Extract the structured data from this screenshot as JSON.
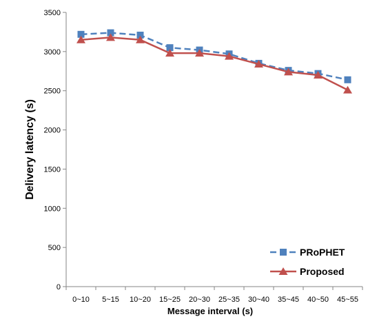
{
  "chart_data": {
    "type": "line",
    "title": "",
    "xlabel": "Message interval (s)",
    "ylabel": "Delivery latency (s)",
    "categories": [
      "0~10",
      "5~15",
      "10~20",
      "15~25",
      "20~30",
      "25~35",
      "30~40",
      "35~45",
      "40~50",
      "45~55"
    ],
    "ylim": [
      0,
      3500
    ],
    "yticks": [
      0,
      500,
      1000,
      1500,
      2000,
      2500,
      3000,
      3500
    ],
    "grid": false,
    "legend_position": "bottom-right",
    "series": [
      {
        "name": "PRoPHET",
        "values": [
          3220,
          3240,
          3210,
          3050,
          3020,
          2970,
          2850,
          2760,
          2720,
          2640
        ],
        "color": "#4f81bd",
        "marker": "square",
        "line_style": "dashed"
      },
      {
        "name": "Proposed",
        "values": [
          3150,
          3180,
          3150,
          2980,
          2980,
          2940,
          2840,
          2740,
          2700,
          2510
        ],
        "color": "#c0504d",
        "marker": "triangle",
        "line_style": "solid"
      }
    ]
  }
}
